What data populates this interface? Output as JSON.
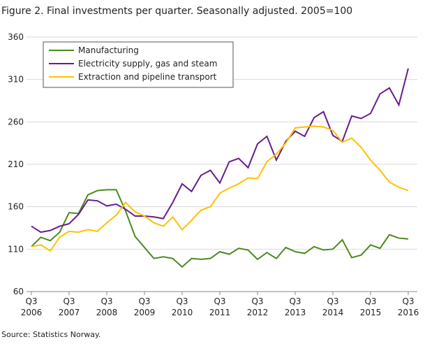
{
  "chart_data": {
    "type": "line",
    "title": "Figure 2. Final investments per quarter. Seasonally adjusted. 2005=100",
    "source": "Source: Statistics Norway.",
    "categories": [
      "Q3 2006",
      null,
      null,
      null,
      "Q3 2007",
      null,
      null,
      null,
      "Q3 2008",
      null,
      null,
      null,
      "Q3 2009",
      null,
      null,
      null,
      "Q3 2010",
      null,
      null,
      null,
      "Q3 2011",
      null,
      null,
      null,
      "Q3 2012",
      null,
      null,
      null,
      "Q3 2013",
      null,
      null,
      null,
      "Q3 2014",
      null,
      null,
      null,
      "Q3 2015",
      null,
      null,
      null,
      "Q3 2016"
    ],
    "series": [
      {
        "name": "Manufacturing",
        "color": "#4a8a1c",
        "values": [
          113,
          124,
          120,
          130,
          153,
          152,
          174,
          179,
          180,
          180,
          155,
          125,
          112,
          99,
          101,
          99,
          89,
          99,
          98,
          99,
          107,
          104,
          111,
          109,
          98,
          106,
          99,
          112,
          107,
          105,
          113,
          109,
          110,
          121,
          100,
          103,
          115,
          111,
          127,
          123,
          122
        ]
      },
      {
        "name": "Electricity supply, gas and steam",
        "color": "#6a1b8a",
        "values": [
          137,
          130,
          132,
          137,
          140,
          151,
          168,
          167,
          161,
          163,
          157,
          149,
          149,
          148,
          146,
          165,
          187,
          178,
          197,
          203,
          188,
          213,
          217,
          206,
          234,
          243,
          215,
          237,
          249,
          243,
          265,
          272,
          244,
          237,
          267,
          264,
          270,
          293,
          300,
          280,
          323
        ]
      },
      {
        "name": "Extraction and pipeline transport",
        "color": "#ffc000",
        "values": [
          113,
          115,
          108,
          124,
          131,
          130,
          133,
          131,
          141,
          150,
          165,
          154,
          149,
          141,
          137,
          148,
          133,
          144,
          156,
          160,
          176,
          182,
          187,
          194,
          193,
          213,
          222,
          235,
          253,
          254,
          255,
          254,
          250,
          236,
          241,
          230,
          215,
          203,
          189,
          183,
          179
        ]
      }
    ],
    "ylim": [
      60,
      360
    ],
    "yticks": [
      60,
      110,
      160,
      210,
      260,
      310,
      360
    ],
    "grid": true,
    "legend": "top-left"
  }
}
